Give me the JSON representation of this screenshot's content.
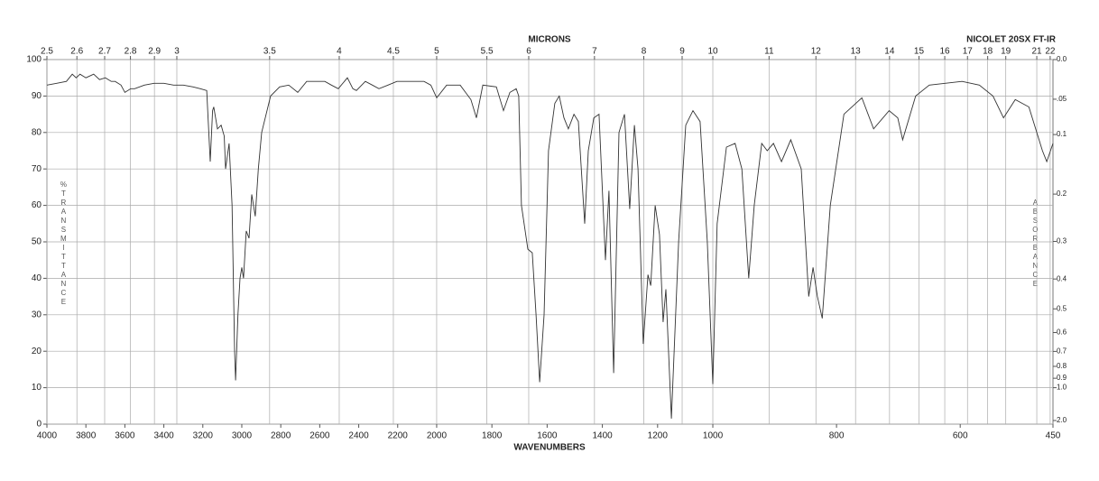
{
  "chart_data": {
    "type": "line",
    "title": "MICRONS",
    "instrument": "NICOLET 20SX FT-IR",
    "x_label": "WAVENUMBERS",
    "y_label": "%TRANSMITTANCE",
    "y2_label": "ABSORBANCE",
    "color": "#333333",
    "grid": true,
    "xlim": [
      4000,
      450
    ],
    "ylim": [
      0,
      100
    ],
    "xticks": [
      4000,
      3800,
      3600,
      3400,
      3200,
      3000,
      2800,
      2600,
      2400,
      2200,
      2000,
      1800,
      1600,
      1400,
      1200,
      1000,
      800,
      600,
      450
    ],
    "yticks": [
      0,
      10,
      20,
      30,
      40,
      50,
      60,
      70,
      80,
      90,
      100
    ],
    "x2ticks": [
      2.5,
      2.6,
      2.7,
      2.8,
      2.9,
      3,
      3.5,
      4,
      4.5,
      5,
      5.5,
      6,
      7,
      8,
      9,
      10,
      11,
      12,
      13,
      14,
      15,
      16,
      17,
      18,
      19,
      21,
      22
    ],
    "y2ticks": [
      {
        "value": 0,
        "label": "0.0"
      },
      {
        "value": 0.05,
        "label": ".05"
      },
      0.1,
      0.2,
      0.3,
      0.4,
      0.5,
      0.6,
      0.7,
      0.8,
      0.9,
      {
        "value": 1,
        "label": "1.0"
      },
      {
        "value": 2,
        "label": "2.0"
      }
    ],
    "x": [
      4000,
      3950,
      3900,
      3870,
      3850,
      3830,
      3800,
      3760,
      3730,
      3700,
      3670,
      3650,
      3620,
      3600,
      3570,
      3550,
      3500,
      3450,
      3400,
      3350,
      3300,
      3250,
      3213,
      3180,
      3162,
      3150,
      3144,
      3125,
      3106,
      3090,
      3083,
      3065,
      3050,
      3037,
      3032,
      3020,
      3009,
      3000,
      2991,
      2977,
      2963,
      2949,
      2931,
      2915,
      2898,
      2852,
      2806,
      2759,
      2713,
      2667,
      2620,
      2574,
      2540,
      2505,
      2458,
      2430,
      2412,
      2366,
      2330,
      2296,
      2250,
      2204,
      2150,
      2065,
      2030,
      2000,
      1964,
      1915,
      1876,
      1856,
      1833,
      1784,
      1758,
      1735,
      1712,
      1703,
      1693,
      1670,
      1654,
      1640,
      1627,
      1611,
      1595,
      1572,
      1556,
      1539,
      1523,
      1503,
      1487,
      1464,
      1451,
      1431,
      1412,
      1389,
      1376,
      1359,
      1340,
      1320,
      1301,
      1284,
      1271,
      1252,
      1235,
      1225,
      1209,
      1193,
      1180,
      1170,
      1150,
      1124,
      1098,
      1072,
      1046,
      1020,
      1000,
      993,
      978,
      964,
      953,
      942,
      933,
      921,
      912,
      902,
      889,
      874,
      857,
      845,
      838,
      831,
      823,
      810,
      788,
      759,
      740,
      715,
      701,
      693,
      672,
      650,
      597,
      569,
      547,
      530,
      511,
      489,
      467,
      460,
      450
    ],
    "values": [
      93,
      93.5,
      94,
      96,
      95,
      96,
      95,
      96,
      94.5,
      95,
      94,
      94,
      93,
      91,
      92,
      92,
      93,
      93.5,
      93.5,
      93,
      93,
      92.5,
      92,
      91.5,
      72,
      86,
      87,
      81,
      82,
      79,
      70,
      77,
      60,
      20,
      12,
      30,
      40,
      43,
      40,
      53,
      51,
      63,
      57,
      70,
      80,
      90,
      92.5,
      93,
      91,
      94,
      94,
      94,
      93,
      92,
      95,
      92,
      91.5,
      94,
      93,
      92,
      93,
      94,
      94,
      94,
      93,
      89.5,
      93,
      93,
      89,
      84,
      93,
      92.5,
      86,
      91,
      92,
      90,
      60,
      48,
      47,
      30,
      11.5,
      30,
      75,
      88,
      90,
      84,
      81,
      85,
      83,
      55,
      75,
      84,
      85,
      45,
      64,
      14,
      80,
      85,
      59,
      82,
      70,
      22,
      41,
      38,
      60,
      52,
      28,
      37,
      1.5,
      50,
      82,
      86,
      83,
      50,
      11,
      55,
      76,
      77,
      70,
      40,
      60,
      77,
      75,
      77,
      72,
      78,
      70,
      35,
      43,
      35,
      29,
      60,
      85,
      89.5,
      81,
      86,
      84,
      78,
      90,
      93,
      94,
      93,
      90,
      84,
      89,
      87,
      75,
      72,
      77
    ]
  }
}
